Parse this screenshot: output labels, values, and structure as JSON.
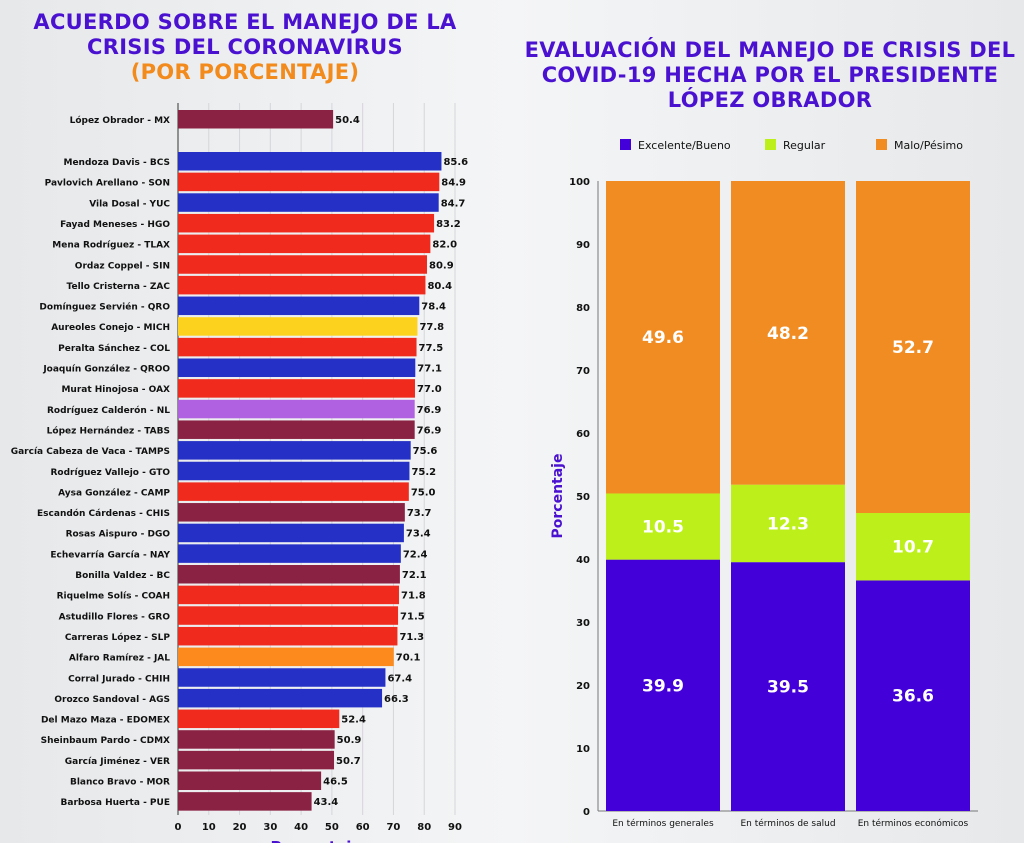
{
  "left_title": {
    "line1": "ACUERDO SOBRE EL MANEJO DE LA",
    "line2": "CRISIS DEL CORONAVIRUS",
    "line3": "(POR PORCENTAJE)"
  },
  "right_title": {
    "line1": "EVALUACIÓN DEL MANEJO DE CRISIS DEL",
    "line2": "COVID-19 HECHA POR EL PRESIDENTE",
    "line3": "LÓPEZ OBRADOR"
  },
  "chart_data": [
    {
      "type": "bar",
      "orientation": "horizontal",
      "xlabel": "Porcentaje",
      "xlim": [
        0,
        90
      ],
      "xticks": [
        0,
        10,
        20,
        30,
        40,
        50,
        60,
        70,
        80,
        90
      ],
      "grid": true,
      "categories": [
        "López Obrador - MX",
        "Mendoza Davis - BCS",
        "Pavlovich Arellano - SON",
        "Vila Dosal - YUC",
        "Fayad Meneses - HGO",
        "Mena Rodríguez - TLAX",
        "Ordaz Coppel - SIN",
        "Tello Cristerna - ZAC",
        "Domínguez Servién - QRO",
        "Aureoles Conejo - MICH",
        "Peralta Sánchez - COL",
        "Joaquín González - QROO",
        "Murat Hinojosa - OAX",
        "Rodríguez Calderón - NL",
        "López Hernández - TABS",
        "García Cabeza de Vaca - TAMPS",
        "Rodríguez Vallejo - GTO",
        "Aysa González - CAMP",
        "Escandón Cárdenas - CHIS",
        "Rosas Aispuro - DGO",
        "Echevarría García - NAY",
        "Bonilla Valdez - BC",
        "Riquelme Solís - COAH",
        "Astudillo Flores - GRO",
        "Carreras López - SLP",
        "Alfaro Ramírez - JAL",
        "Corral Jurado - CHIH",
        "Orozco Sandoval - AGS",
        "Del Mazo Maza - EDOMEX",
        "Sheinbaum Pardo - CDMX",
        "García Jiménez - VER",
        "Blanco Bravo - MOR",
        "Barbosa Huerta - PUE"
      ],
      "values": [
        50.4,
        85.6,
        84.9,
        84.7,
        83.2,
        82.0,
        80.9,
        80.4,
        78.4,
        77.8,
        77.5,
        77.1,
        77.0,
        76.9,
        76.9,
        75.6,
        75.2,
        75.0,
        73.7,
        73.4,
        72.4,
        72.1,
        71.8,
        71.5,
        71.3,
        70.1,
        67.4,
        66.3,
        52.4,
        50.9,
        50.7,
        46.5,
        43.4
      ],
      "labels": [
        "50.4",
        "85.6",
        "84.9",
        "84.7",
        "83.2",
        "82.0",
        "80.9",
        "80.4",
        "78.4",
        "77.8",
        "77.5",
        "77.1",
        "77.0",
        "76.9",
        "76.9",
        "75.6",
        "75.2",
        "75.0",
        "73.7",
        "73.4",
        "72.4",
        "72.1",
        "71.8",
        "71.5",
        "71.3",
        "70.1",
        "67.4",
        "66.3",
        "52.4",
        "50.9",
        "50.7",
        "46.5",
        "43.4"
      ],
      "colors": [
        "#8a2243",
        "#2430c6",
        "#f02b1d",
        "#2430c6",
        "#f02b1d",
        "#f02b1d",
        "#f02b1d",
        "#f02b1d",
        "#2430c6",
        "#fdd21e",
        "#f02b1d",
        "#2430c6",
        "#f02b1d",
        "#b061e2",
        "#8a2243",
        "#2430c6",
        "#2430c6",
        "#f02b1d",
        "#8a2243",
        "#2430c6",
        "#2430c6",
        "#8a2243",
        "#f02b1d",
        "#f02b1d",
        "#f02b1d",
        "#fc8a1c",
        "#2430c6",
        "#2430c6",
        "#f02b1d",
        "#8a2243",
        "#8a2243",
        "#8a2243",
        "#8a2243"
      ]
    },
    {
      "type": "bar",
      "stacked": true,
      "ylabel": "Porcentaje",
      "ylim": [
        0,
        100
      ],
      "yticks": [
        0,
        10,
        20,
        30,
        40,
        50,
        60,
        70,
        80,
        90,
        100
      ],
      "legend": "top",
      "categories": [
        "En términos generales",
        "En términos de salud",
        "En términos económicos"
      ],
      "series": [
        {
          "name": "Excelente/Bueno",
          "color": "#4300d8",
          "values": [
            39.9,
            39.5,
            36.6
          ],
          "labels": [
            "39.9",
            "39.5",
            "36.6"
          ]
        },
        {
          "name": "Regular",
          "color": "#bdf01b",
          "values": [
            10.5,
            12.3,
            10.7
          ],
          "labels": [
            "10.5",
            "12.3",
            "10.7"
          ]
        },
        {
          "name": "Malo/Pésimo",
          "color": "#f08c22",
          "values": [
            49.6,
            48.2,
            52.7
          ],
          "labels": [
            "49.6",
            "48.2",
            "52.7"
          ]
        }
      ]
    }
  ]
}
